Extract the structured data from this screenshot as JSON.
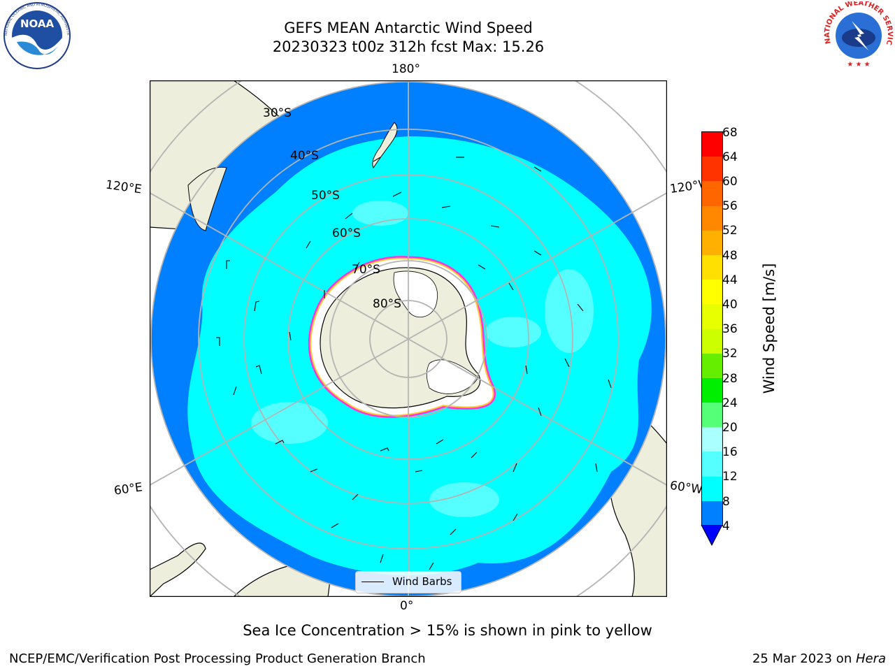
{
  "header": {
    "title_line1": "GEFS MEAN Antarctic Wind Speed",
    "title_line2": "20230323 t00z 312h fcst   Max: 15.26"
  },
  "logos": {
    "noaa_text": "NOAA",
    "noaa_ring": "NATIONAL OCEANIC AND ATMOSPHERIC ADMINISTRATION · U.S. DEPARTMENT OF COMMERCE",
    "nws_ring": "NATIONAL WEATHER SERVICE"
  },
  "map": {
    "lon_labels": {
      "top": "180°",
      "bottom": "0°",
      "left_upper": "120°E",
      "left_lower": "60°E",
      "right_upper": "120°W",
      "right_lower": "60°W"
    },
    "lat_labels": [
      "30°S",
      "40°S",
      "50°S",
      "60°S",
      "70°S",
      "80°S"
    ],
    "legend_label": "Wind Barbs"
  },
  "colorbar": {
    "label": "Wind Speed [m/s]",
    "ticks": [
      "68",
      "64",
      "60",
      "56",
      "52",
      "48",
      "44",
      "40",
      "36",
      "32",
      "28",
      "24",
      "20",
      "16",
      "12",
      "8",
      "4"
    ],
    "colors": [
      "#ff0000",
      "#ff3300",
      "#ff6600",
      "#ff8800",
      "#ffb000",
      "#ffe000",
      "#ffff00",
      "#e8ff00",
      "#ccff00",
      "#99ff00",
      "#55ee00",
      "#00ee00",
      "#55ff77",
      "#aaffff",
      "#55ffff",
      "#00ffff",
      "#0080ff"
    ],
    "under_color": "#0000ff"
  },
  "caption": "Sea Ice Concentration > 15% is shown in pink to yellow",
  "footer": {
    "left": "NCEP/EMC/Verification Post Processing Product Generation Branch",
    "right_date": "25 Mar 2023 on ",
    "right_host": "Hera"
  }
}
